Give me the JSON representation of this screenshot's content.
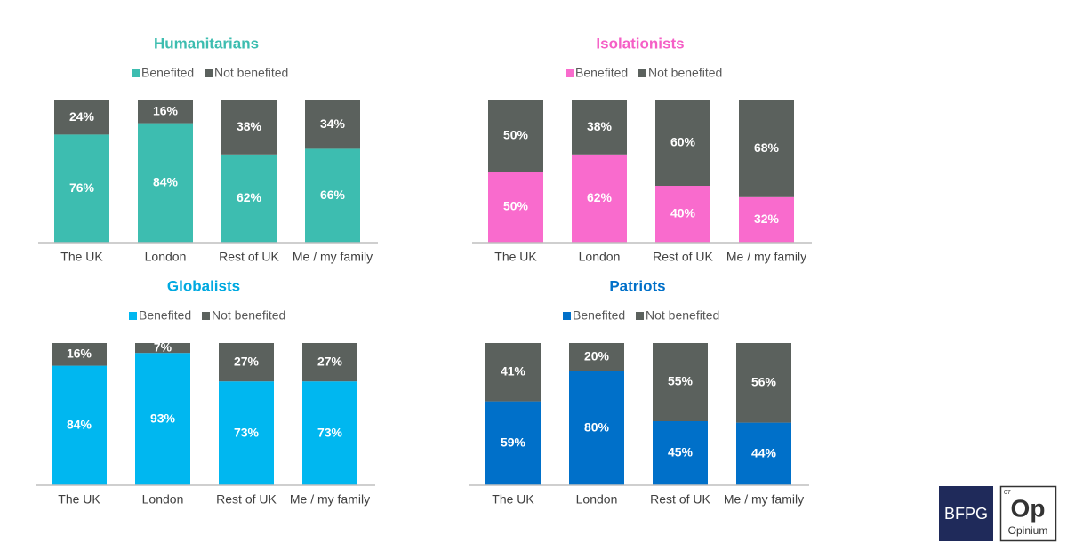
{
  "chart_data": [
    {
      "type": "bar",
      "stacked": true,
      "title": "Humanitarians",
      "title_color": "#3dbdb0",
      "categories": [
        "The UK",
        "London",
        "Rest of UK",
        "Me / my family"
      ],
      "ylim": [
        0,
        100
      ],
      "series": [
        {
          "name": "Benefited",
          "color": "#3dbdb0",
          "values": [
            76,
            84,
            62,
            66
          ],
          "value_labels": [
            "76%",
            "84%",
            "62%",
            "66%"
          ]
        },
        {
          "name": "Not benefited",
          "color": "#5b615d",
          "values": [
            24,
            16,
            38,
            34
          ],
          "value_labels": [
            "24%",
            "16%",
            "38%",
            "34%"
          ]
        }
      ]
    },
    {
      "type": "bar",
      "stacked": true,
      "title": "Isolationists",
      "title_color": "#f55fc6",
      "categories": [
        "The UK",
        "London",
        "Rest of UK",
        "Me / my family"
      ],
      "ylim": [
        0,
        100
      ],
      "series": [
        {
          "name": "Benefited",
          "color": "#f96bcd",
          "values": [
            50,
            62,
            40,
            32
          ],
          "value_labels": [
            "50%",
            "62%",
            "40%",
            "32%"
          ]
        },
        {
          "name": "Not benefited",
          "color": "#5b615d",
          "values": [
            50,
            38,
            60,
            68
          ],
          "value_labels": [
            "50%",
            "38%",
            "60%",
            "68%"
          ]
        }
      ]
    },
    {
      "type": "bar",
      "stacked": true,
      "title": "Globalists",
      "title_color": "#00a9e0",
      "categories": [
        "The UK",
        "London",
        "Rest of UK",
        "Me / my family"
      ],
      "ylim": [
        0,
        100
      ],
      "series": [
        {
          "name": "Benefited",
          "color": "#00b7f0",
          "values": [
            84,
            93,
            73,
            73
          ],
          "value_labels": [
            "84%",
            "93%",
            "73%",
            "73%"
          ]
        },
        {
          "name": "Not benefited",
          "color": "#5b615d",
          "values": [
            16,
            7,
            27,
            27
          ],
          "value_labels": [
            "16%",
            "7%",
            "27%",
            "27%"
          ]
        }
      ]
    },
    {
      "type": "bar",
      "stacked": true,
      "title": "Patriots",
      "title_color": "#0070c9",
      "categories": [
        "The UK",
        "London",
        "Rest of UK",
        "Me / my family"
      ],
      "ylim": [
        0,
        100
      ],
      "series": [
        {
          "name": "Benefited",
          "color": "#0070c9",
          "values": [
            59,
            80,
            45,
            44
          ],
          "value_labels": [
            "59%",
            "80%",
            "45%",
            "44%"
          ]
        },
        {
          "name": "Not benefited",
          "color": "#5b615d",
          "values": [
            41,
            20,
            55,
            56
          ],
          "value_labels": [
            "41%",
            "20%",
            "55%",
            "56%"
          ]
        }
      ]
    }
  ],
  "logos": {
    "bfpg": "BFPG",
    "op_number": "07",
    "op_symbol": "Op",
    "op_name": "Opinium"
  }
}
